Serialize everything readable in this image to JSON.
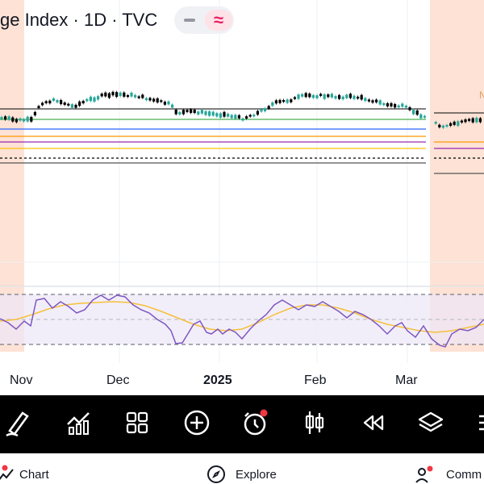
{
  "header": {
    "title": "ge Index · 1D · TVC"
  },
  "chart": {
    "xaxis_labels": [
      "Nov",
      "Dec",
      "2025",
      "Feb",
      "Mar"
    ],
    "right_edge_text": "N"
  },
  "toolbar": {
    "items": [
      "draw",
      "indicators",
      "layouts",
      "add",
      "alert",
      "candles",
      "replay",
      "layers",
      "more"
    ]
  },
  "bottom_nav": {
    "chart_label": "Chart",
    "explore_label": "Explore",
    "community_label": "Comm"
  },
  "colors": {
    "session_shade": "#fde2d5",
    "candle_up": "#26a69a",
    "candle_down": "#000000",
    "indicator_line": "#7e57c2",
    "indicator_signal": "#f5c03b",
    "green_line": "#4caf50",
    "blue_line": "#2962ff",
    "purple_line": "#9c27b0",
    "orange_line": "#ff9800",
    "yellow_line": "#ffc107"
  }
}
